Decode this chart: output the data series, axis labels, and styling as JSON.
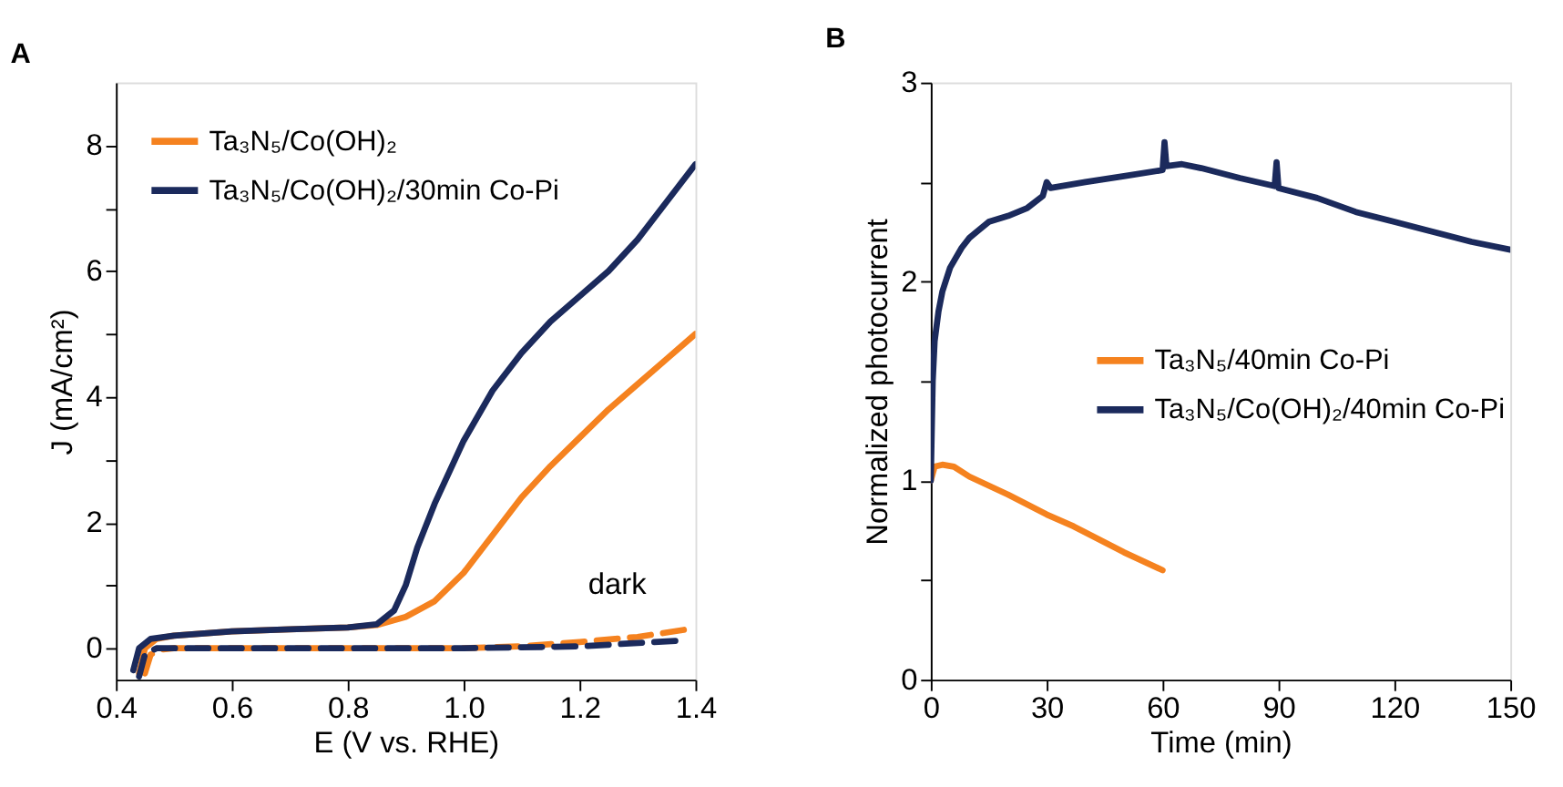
{
  "chart_data": [
    {
      "type": "line",
      "title": "A",
      "xlabel": "E (V vs. RHE)",
      "ylabel": "J (mA/cm²)",
      "xlim": [
        0.4,
        1.4
      ],
      "ylim": [
        -0.5,
        9
      ],
      "xticks": [
        0.4,
        0.6,
        0.8,
        {
          "value": 1,
          "label": "1.0"
        },
        1.2,
        1.4
      ],
      "yticks": [
        0,
        {
          "value": 1,
          "label": null
        },
        2,
        {
          "value": 3,
          "label": null
        },
        4,
        {
          "value": 5,
          "label": null
        },
        6,
        {
          "value": 7,
          "label": null
        },
        8
      ],
      "grid": false,
      "legend": "top left",
      "marker": "none",
      "annotations": [
        "dark"
      ],
      "series": [
        {
          "name": "Ta₃N₅/Co(OH)₂",
          "color": "#f5821f",
          "line_style": "solid",
          "x": [
            0.44,
            0.45,
            0.47,
            0.5,
            0.6,
            0.7,
            0.8,
            0.85,
            0.9,
            0.95,
            1.0,
            1.05,
            1.1,
            1.15,
            1.2,
            1.25,
            1.3,
            1.35,
            1.4
          ],
          "values": [
            -0.4,
            0,
            0.15,
            0.2,
            0.27,
            0.3,
            0.33,
            0.37,
            0.5,
            0.75,
            1.2,
            1.8,
            2.4,
            2.9,
            3.35,
            3.8,
            4.2,
            4.6,
            5.0
          ]
        },
        {
          "name": "Ta₃N₅/Co(OH)₂/30min Co-Pi",
          "color": "#1b2a5c",
          "line_style": "solid",
          "x": [
            0.43,
            0.44,
            0.46,
            0.5,
            0.6,
            0.7,
            0.8,
            0.85,
            0.88,
            0.9,
            0.92,
            0.95,
            1.0,
            1.05,
            1.1,
            1.15,
            1.2,
            1.25,
            1.3,
            1.35,
            1.4
          ],
          "values": [
            -0.35,
            0,
            0.15,
            0.2,
            0.27,
            0.3,
            0.33,
            0.38,
            0.6,
            1.0,
            1.6,
            2.3,
            3.3,
            4.1,
            4.7,
            5.2,
            5.6,
            6.0,
            6.5,
            7.1,
            7.7
          ]
        },
        {
          "color": "#f5821f",
          "line_style": "dashed",
          "x": [
            0.45,
            0.46,
            0.48,
            0.5,
            0.8,
            1.0,
            1.1,
            1.2,
            1.3,
            1.4
          ],
          "values": [
            -0.4,
            -0.1,
            -0.02,
            0,
            0,
            0,
            0.03,
            0.1,
            0.18,
            0.32
          ]
        },
        {
          "color": "#1b2a5c",
          "line_style": "dashed",
          "x": [
            0.44,
            0.45,
            0.47,
            1.0,
            1.2,
            1.37
          ],
          "values": [
            -0.45,
            -0.1,
            0,
            0,
            0.03,
            0.12
          ]
        }
      ]
    },
    {
      "type": "line",
      "title": "B",
      "xlabel": "Time (min)",
      "ylabel": "Normalized photocurrent",
      "xlim": [
        0,
        150
      ],
      "ylim": [
        0,
        3
      ],
      "xticks": [
        0,
        30,
        60,
        90,
        120,
        150
      ],
      "yticks": [
        0,
        {
          "value": 0.5,
          "label": null
        },
        1,
        {
          "value": 1.5,
          "label": null
        },
        2,
        {
          "value": 2.5,
          "label": null
        },
        3
      ],
      "grid": false,
      "legend": "right",
      "marker": "none",
      "series": [
        {
          "name": "Ta₃N₅/40min Co-Pi",
          "color": "#f5821f",
          "line_style": "solid",
          "x": [
            0,
            1,
            3,
            6,
            10,
            20,
            30,
            37,
            40,
            50,
            60
          ],
          "values": [
            1.0,
            1.07,
            1.08,
            1.07,
            1.02,
            0.93,
            0.83,
            0.77,
            0.74,
            0.64,
            0.55
          ]
        },
        {
          "name": "Ta₃N₅/Co(OH)₂/40min Co-Pi",
          "color": "#1b2a5c",
          "line_style": "solid",
          "x": [
            0,
            0.5,
            1,
            2,
            3,
            5,
            8,
            10,
            15,
            20,
            25,
            29,
            30,
            31,
            40,
            50,
            60,
            60.5,
            61,
            65,
            70,
            80,
            89,
            89.5,
            90,
            100,
            110,
            120,
            130,
            140,
            150
          ],
          "values": [
            1.0,
            1.5,
            1.7,
            1.85,
            1.95,
            2.07,
            2.17,
            2.22,
            2.3,
            2.33,
            2.37,
            2.43,
            2.5,
            2.47,
            2.5,
            2.53,
            2.56,
            2.7,
            2.58,
            2.59,
            2.57,
            2.52,
            2.48,
            2.6,
            2.47,
            2.42,
            2.35,
            2.3,
            2.25,
            2.2,
            2.16
          ]
        }
      ]
    }
  ]
}
